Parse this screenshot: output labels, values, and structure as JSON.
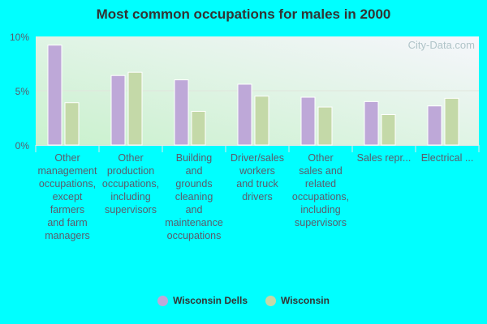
{
  "chart_data": {
    "type": "bar",
    "title": "Most common occupations for males in 2000",
    "categories": [
      "Other\nmanagement\noccupations,\nexcept\nfarmers\nand farm\nmanagers",
      "Other\nproduction\noccupations,\nincluding\nsupervisors",
      "Building\nand\ngrounds\ncleaning\nand\nmaintenance\noccupations",
      "Driver/sales\nworkers\nand truck\ndrivers",
      "Other\nsales and\nrelated\noccupations,\nincluding\nsupervisors",
      "Sales repr...",
      "Electrical ..."
    ],
    "series": [
      {
        "name": "Wisconsin Dells",
        "color": "#bea8d8",
        "values": [
          9.2,
          6.4,
          6.0,
          5.6,
          4.4,
          4.0,
          3.6
        ]
      },
      {
        "name": "Wisconsin",
        "color": "#c4d9a8",
        "values": [
          3.9,
          6.7,
          3.1,
          4.5,
          3.5,
          2.8,
          4.3
        ]
      }
    ],
    "ylim": [
      0,
      10
    ],
    "yticks": [
      "0%",
      "5%",
      "10%"
    ],
    "ytick_values": [
      0,
      5,
      10
    ],
    "grid": true,
    "legend": "bottom",
    "watermark": "City-Data.com"
  }
}
